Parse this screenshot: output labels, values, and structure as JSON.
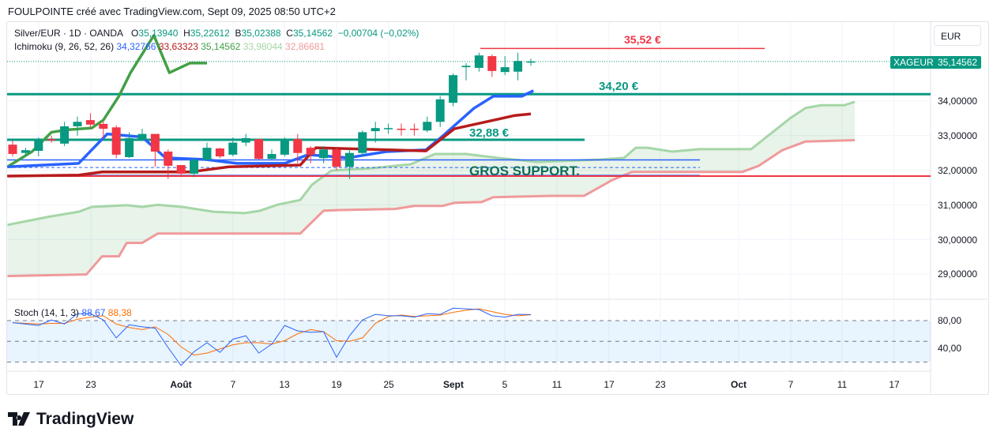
{
  "header": {
    "title": "FOULPOINTE créé avec TradingView.com, Sept 09, 2025 08:50 UTC+2"
  },
  "legend": {
    "symbol": "Silver/EUR · 1D · OANDA",
    "o_label": "O",
    "o": "35,13940",
    "h_label": "H",
    "h": "35,22612",
    "b_label": "B",
    "b": "35,02388",
    "c_label": "C",
    "c": "35,14562",
    "change": "−0,00704 (−0,02%)",
    "ichimoku_label": "Ichimoku (9, 26, 52, 26)",
    "ichimoku_values": [
      "34,32766",
      "33,63323",
      "35,14562",
      "33,98044",
      "32,86681"
    ],
    "ichimoku_colors": [
      "#2962ff",
      "#b71c1c",
      "#43a047",
      "#a5d6a7",
      "#ef9a9a"
    ]
  },
  "currency_button": "EUR",
  "price_tag": {
    "symbol": "XAGEUR",
    "price": "35,14562"
  },
  "y_ticks": [
    "34,00000",
    "33,00000",
    "32,00000",
    "31,00000",
    "30,00000",
    "29,00000"
  ],
  "x_ticks": [
    "17",
    "23",
    "Août",
    "7",
    "13",
    "19",
    "25",
    "Sept",
    "5",
    "11",
    "17",
    "23",
    "Oct",
    "7",
    "11",
    "17"
  ],
  "annotations": {
    "r1": "35,52 €",
    "s1": "34,20 €",
    "s2": "32,88 €",
    "support": "GROS SUPPORT."
  },
  "stoch": {
    "label": "Stoch (14, 1, 3)",
    "k": "88,67",
    "d": "88,38",
    "ticks": [
      "80,00",
      "40,00"
    ]
  },
  "logo": "TradingView",
  "chart_data": {
    "type": "candlestick",
    "title": "Silver/EUR · 1D · OANDA",
    "ylim": [
      28.6,
      35.9
    ],
    "candles": [
      [
        32.74,
        32.86,
        32.4,
        32.47
      ],
      [
        32.5,
        32.65,
        32.4,
        32.58
      ],
      [
        32.56,
        32.95,
        32.4,
        32.86
      ],
      [
        32.9,
        33.0,
        32.8,
        32.86
      ],
      [
        32.77,
        33.4,
        32.7,
        33.27
      ],
      [
        33.27,
        33.55,
        33.0,
        33.4
      ],
      [
        33.45,
        33.65,
        33.2,
        33.32
      ],
      [
        33.34,
        33.4,
        32.9,
        33.2
      ],
      [
        33.24,
        33.3,
        32.35,
        32.45
      ],
      [
        32.38,
        33.1,
        32.35,
        32.93
      ],
      [
        32.88,
        33.2,
        32.85,
        33.05
      ],
      [
        33.05,
        33.05,
        32.1,
        32.54
      ],
      [
        32.54,
        32.6,
        31.75,
        32.13
      ],
      [
        32.15,
        32.15,
        31.8,
        31.9
      ],
      [
        31.9,
        32.35,
        31.8,
        32.3
      ],
      [
        32.3,
        32.8,
        32.3,
        32.65
      ],
      [
        32.63,
        32.65,
        32.35,
        32.4
      ],
      [
        32.45,
        32.95,
        32.4,
        32.8
      ],
      [
        32.8,
        33.05,
        32.7,
        32.93
      ],
      [
        32.9,
        32.9,
        32.3,
        32.33
      ],
      [
        32.33,
        32.6,
        32.3,
        32.47
      ],
      [
        32.45,
        32.95,
        32.4,
        32.9
      ],
      [
        32.9,
        33.05,
        32.2,
        32.5
      ],
      [
        32.65,
        32.7,
        32.2,
        32.45
      ],
      [
        32.35,
        32.7,
        32.2,
        32.6
      ],
      [
        32.6,
        32.65,
        32.0,
        32.1
      ],
      [
        32.1,
        32.6,
        31.75,
        32.5
      ],
      [
        32.5,
        33.15,
        32.4,
        33.1
      ],
      [
        33.13,
        33.4,
        32.8,
        33.22
      ],
      [
        33.2,
        33.35,
        33.05,
        33.22
      ],
      [
        33.2,
        33.35,
        33.0,
        33.18
      ],
      [
        33.2,
        33.35,
        33.0,
        33.18
      ],
      [
        33.15,
        33.55,
        33.1,
        33.4
      ],
      [
        33.4,
        34.15,
        33.25,
        34.05
      ],
      [
        33.95,
        34.8,
        33.85,
        34.75
      ],
      [
        34.98,
        35.1,
        34.6,
        35.02
      ],
      [
        34.96,
        35.4,
        34.85,
        35.32
      ],
      [
        35.3,
        35.35,
        34.7,
        34.87
      ],
      [
        34.84,
        35.3,
        34.75,
        34.98
      ],
      [
        34.85,
        35.4,
        34.6,
        35.16
      ],
      [
        35.1394,
        35.22612,
        35.02388,
        35.14562
      ]
    ],
    "tenkan": [
      [
        -0.4,
        32.1
      ],
      [
        5.1,
        32.2
      ],
      [
        7.3,
        33.05
      ],
      [
        10,
        32.96
      ],
      [
        11.8,
        32.36
      ],
      [
        14.9,
        32.31
      ],
      [
        17.3,
        32.2
      ],
      [
        21,
        32.2
      ],
      [
        22.8,
        32.45
      ],
      [
        25.9,
        32.36
      ],
      [
        27.7,
        32.47
      ],
      [
        28.9,
        32.54
      ],
      [
        31.9,
        32.59
      ],
      [
        33.2,
        32.99
      ],
      [
        35.6,
        33.79
      ],
      [
        37.1,
        34.14
      ],
      [
        39.3,
        34.14
      ],
      [
        40.2,
        34.3
      ]
    ],
    "kijun": [
      [
        -0.4,
        31.83
      ],
      [
        5.1,
        31.86
      ],
      [
        6.9,
        31.95
      ],
      [
        13.7,
        31.95
      ],
      [
        16.7,
        32.1
      ],
      [
        22.2,
        32.15
      ],
      [
        23.4,
        32.65
      ],
      [
        31.9,
        32.56
      ],
      [
        34.1,
        33.2
      ],
      [
        37.4,
        33.47
      ],
      [
        38.7,
        33.58
      ],
      [
        40.0,
        33.63
      ]
    ],
    "chikou": [
      [
        -0.4,
        32.1
      ],
      [
        1.5,
        32.54
      ],
      [
        3,
        33.1
      ],
      [
        4.2,
        33.17
      ],
      [
        6.1,
        33.22
      ],
      [
        7,
        33.45
      ],
      [
        8.2,
        34.14
      ],
      [
        9.1,
        34.82
      ],
      [
        10.9,
        35.9
      ],
      [
        12.1,
        34.82
      ],
      [
        13.7,
        35.1
      ],
      [
        15,
        35.1
      ]
    ],
    "span_a": [
      [
        -0.4,
        30.42
      ],
      [
        2.7,
        30.65
      ],
      [
        5.1,
        30.8
      ],
      [
        6.1,
        30.94
      ],
      [
        8.8,
        30.99
      ],
      [
        10,
        30.94
      ],
      [
        11.2,
        31.0
      ],
      [
        13.1,
        30.94
      ],
      [
        15.5,
        30.8
      ],
      [
        17.9,
        30.76
      ],
      [
        19.1,
        30.83
      ],
      [
        20.4,
        31.0
      ],
      [
        22.2,
        31.14
      ],
      [
        23.1,
        31.58
      ],
      [
        24.6,
        31.99
      ],
      [
        27.7,
        32.06
      ],
      [
        30.7,
        32.17
      ],
      [
        32.6,
        32.47
      ],
      [
        35,
        32.47
      ],
      [
        37.4,
        32.36
      ],
      [
        40.5,
        32.24
      ],
      [
        45.4,
        32.31
      ],
      [
        47.2,
        32.36
      ],
      [
        48.1,
        32.65
      ],
      [
        49,
        32.65
      ],
      [
        50.9,
        32.54
      ],
      [
        53,
        32.61
      ],
      [
        57,
        32.61
      ],
      [
        60,
        33.5
      ],
      [
        61.2,
        33.8
      ],
      [
        62.4,
        33.88
      ],
      [
        64.2,
        33.88
      ],
      [
        65,
        33.98
      ]
    ],
    "span_b": [
      [
        -0.4,
        28.94
      ],
      [
        5.7,
        28.99
      ],
      [
        6.9,
        29.51
      ],
      [
        8.2,
        29.51
      ],
      [
        8.8,
        29.9
      ],
      [
        10,
        29.9
      ],
      [
        11.2,
        30.17
      ],
      [
        22.2,
        30.17
      ],
      [
        24,
        30.83
      ],
      [
        25.2,
        30.85
      ],
      [
        29.5,
        30.88
      ],
      [
        31,
        30.97
      ],
      [
        33.2,
        30.97
      ],
      [
        34.1,
        31.06
      ],
      [
        36.2,
        31.08
      ],
      [
        37.1,
        31.22
      ],
      [
        41.7,
        31.26
      ],
      [
        44.1,
        31.26
      ],
      [
        46.3,
        31.72
      ],
      [
        47.8,
        31.95
      ],
      [
        56.3,
        31.95
      ],
      [
        57.6,
        32.13
      ],
      [
        59.4,
        32.58
      ],
      [
        61.2,
        32.83
      ],
      [
        65,
        32.87
      ]
    ],
    "levels": [
      {
        "price": 35.52,
        "color": "#f23645"
      },
      {
        "price": 34.2,
        "color": "#089981"
      },
      {
        "price": 32.88,
        "color": "#089981"
      },
      {
        "price": 32.3,
        "color": "#2962ff"
      },
      {
        "price": 32.08,
        "color": "#2962ff"
      },
      {
        "price": 31.85,
        "color": "#2962ff"
      },
      {
        "price": 31.83,
        "color": "#f23645"
      }
    ],
    "stoch_k": [
      77,
      75,
      73,
      81,
      75,
      90,
      90,
      81,
      55,
      74,
      71,
      69,
      41,
      15,
      35,
      48,
      34,
      53,
      58,
      33,
      46,
      73,
      65,
      63,
      64,
      27,
      58,
      81,
      89,
      87,
      87,
      85,
      90,
      89,
      98,
      97,
      96,
      87,
      85,
      89,
      88.67
    ],
    "stoch_d": [
      77,
      76,
      75,
      76,
      76,
      82,
      85,
      87,
      75,
      70,
      67,
      71,
      60,
      42,
      30,
      33,
      39,
      45,
      48,
      48,
      46,
      51,
      61,
      67,
      64,
      51,
      50,
      55,
      76,
      86,
      88,
      86,
      87,
      88,
      92,
      95,
      97,
      93,
      89,
      87,
      88.38
    ],
    "colors": {
      "up": "#089981",
      "down": "#f23645"
    }
  }
}
